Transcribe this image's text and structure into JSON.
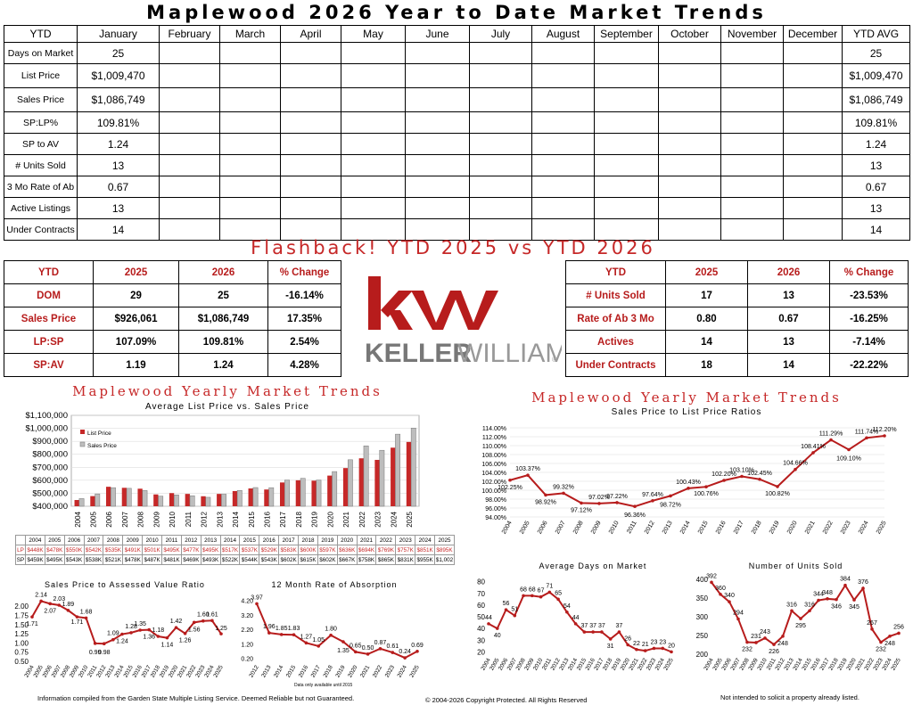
{
  "title": "Maplewood 2026 Year to Date Market Trends",
  "ytd_table": {
    "headers": [
      "YTD",
      "January",
      "February",
      "March",
      "April",
      "May",
      "June",
      "July",
      "August",
      "September",
      "October",
      "November",
      "December",
      "YTD AVG"
    ],
    "rows": [
      {
        "label": "Days on Market",
        "jan": "25",
        "avg": "25"
      },
      {
        "label": "List Price",
        "jan": "$1,009,470",
        "avg": "$1,009,470"
      },
      {
        "label": "Sales Price",
        "jan": "$1,086,749",
        "avg": "$1,086,749"
      },
      {
        "label": "SP:LP%",
        "jan": "109.81%",
        "avg": "109.81%"
      },
      {
        "label": "SP to AV",
        "jan": "1.24",
        "avg": "1.24"
      },
      {
        "label": "# Units Sold",
        "jan": "13",
        "avg": "13"
      },
      {
        "label": "3 Mo Rate of Ab",
        "jan": "0.67",
        "avg": "0.67"
      },
      {
        "label": "Active Listings",
        "jan": "13",
        "avg": "13"
      },
      {
        "label": "Under Contracts",
        "jan": "14",
        "avg": "14"
      }
    ]
  },
  "flashback_title": "Flashback!  YTD 2025 vs YTD 2026",
  "compare_left": {
    "headers": [
      "YTD",
      "2025",
      "2026",
      "% Change"
    ],
    "rows": [
      [
        "DOM",
        "29",
        "25",
        "-16.14%"
      ],
      [
        "Sales Price",
        "$926,061",
        "$1,086,749",
        "17.35%"
      ],
      [
        "LP:SP",
        "107.09%",
        "109.81%",
        "2.54%"
      ],
      [
        "SP:AV",
        "1.19",
        "1.24",
        "4.28%"
      ]
    ]
  },
  "compare_right": {
    "headers": [
      "YTD",
      "2025",
      "2026",
      "% Change"
    ],
    "rows": [
      [
        "# Units Sold",
        "17",
        "13",
        "-23.53%"
      ],
      [
        "Rate of Ab 3 Mo",
        "0.80",
        "0.67",
        "-16.25%"
      ],
      [
        "Actives",
        "14",
        "13",
        "-7.14%"
      ],
      [
        "Under Contracts",
        "18",
        "14",
        "-22.22%"
      ]
    ]
  },
  "logo": {
    "mark": "kw",
    "name_bold": "KELLER",
    "name_light": "WILLIAMS",
    "registered": "®"
  },
  "colors": {
    "accent": "#c62828",
    "dark_red": "#b71c1c",
    "gray_bar": "#bdbdbd"
  },
  "footer": {
    "left": "Information compiled from the Garden State Multiple Listing Service.  Deemed Reliable but not Guaranteed.",
    "center": "© 2004-2026 Copyright Protected.  All Rights Reserved",
    "right": "Not intended to solicit a property already listed.",
    "note": "Data only available until 2015"
  },
  "chart_data": [
    {
      "type": "bar",
      "title": "Maplewood Yearly Market Trends",
      "subtitle": "Average List Price vs. Sales Price",
      "categories": [
        "2004",
        "2005",
        "2006",
        "2007",
        "2008",
        "2009",
        "2010",
        "2011",
        "2012",
        "2013",
        "2014",
        "2015",
        "2016",
        "2017",
        "2018",
        "2019",
        "2020",
        "2021",
        "2022",
        "2023",
        "2024",
        "2025"
      ],
      "series": [
        {
          "name": "List Price",
          "values": [
            448,
            478,
            550,
            542,
            535,
            491,
            501,
            495,
            477,
            495,
            517,
            537,
            529,
            583,
            600,
            597,
            636,
            694,
            769,
            757,
            851,
            895
          ]
        },
        {
          "name": "Sales Price",
          "values": [
            459,
            495,
            543,
            538,
            521,
            478,
            487,
            481,
            469,
            493,
            522,
            544,
            543,
            602,
            615,
            602,
            667,
            758,
            865,
            831,
            955,
            1002
          ]
        }
      ],
      "yticks": [
        "$400,000",
        "$500,000",
        "$600,000",
        "$700,000",
        "$800,000",
        "$900,000",
        "$1,000,000",
        "$1,100,000"
      ],
      "ylim": [
        400,
        1100
      ],
      "table_rows": [
        {
          "label": "LP",
          "cells": [
            "$448K",
            "$478K",
            "$550K",
            "$542K",
            "$535K",
            "$491K",
            "$501K",
            "$495K",
            "$477K",
            "$495K",
            "$517K",
            "$537K",
            "$529K",
            "$583K",
            "$600K",
            "$597K",
            "$636K",
            "$694K",
            "$769K",
            "$757K",
            "$851K",
            "$895K"
          ]
        },
        {
          "label": "SP",
          "cells": [
            "$459K",
            "$495K",
            "$543K",
            "$538K",
            "$521K",
            "$478K",
            "$487K",
            "$481K",
            "$469K",
            "$493K",
            "$522K",
            "$544K",
            "$543K",
            "$602K",
            "$615K",
            "$602K",
            "$667K",
            "$758K",
            "$865K",
            "$831K",
            "$955K",
            "$1,002"
          ]
        }
      ]
    },
    {
      "type": "line",
      "title": "Maplewood Yearly Market Trends",
      "subtitle": "Sales Price to List Price Ratios",
      "x": [
        "2004",
        "2005",
        "2006",
        "2007",
        "2008",
        "2009",
        "2010",
        "2011",
        "2012",
        "2013",
        "2014",
        "2015",
        "2016",
        "2017",
        "2018",
        "2019",
        "2020",
        "2021",
        "2022",
        "2023",
        "2024",
        "2025"
      ],
      "y": [
        102.25,
        103.37,
        98.92,
        99.32,
        97.12,
        97.02,
        97.22,
        96.36,
        97.64,
        98.72,
        100.43,
        100.76,
        102.2,
        103.1,
        102.45,
        100.82,
        104.66,
        108.41,
        111.29,
        109.1,
        111.74,
        112.2
      ],
      "labels": [
        "102.25%",
        "103.37%",
        "98.92%",
        "99.32%",
        "97.12%",
        "97.02%",
        "97.22%",
        "96.36%",
        "97.64%",
        "98.72%",
        "100.43%",
        "100.76%",
        "102.20%",
        "103.10%",
        "102.45%",
        "100.82%",
        "104.66%",
        "108.41%",
        "111.29%",
        "109.10%",
        "111.74%",
        "112.20%"
      ],
      "yticks": [
        "94.00%",
        "96.00%",
        "98.00%",
        "100.00%",
        "102.00%",
        "104.00%",
        "106.00%",
        "108.00%",
        "110.00%",
        "112.00%",
        "114.00%"
      ],
      "ylim": [
        94,
        114
      ]
    },
    {
      "type": "line",
      "title": "Sales Price to Assessed Value Ratio",
      "x": [
        "2004",
        "2005",
        "2006",
        "2007",
        "2008",
        "2009",
        "2010",
        "2011",
        "2012",
        "2013",
        "2014",
        "2015",
        "2016",
        "2017",
        "2018",
        "2019",
        "2020",
        "2021",
        "2022",
        "2023",
        "2024",
        "2025"
      ],
      "y": [
        1.71,
        2.14,
        2.07,
        2.03,
        1.89,
        1.71,
        1.68,
        0.99,
        0.98,
        1.09,
        1.24,
        1.28,
        1.35,
        1.36,
        1.18,
        1.14,
        1.42,
        1.26,
        1.56,
        1.6,
        1.61,
        1.25
      ],
      "labels": [
        "1.71",
        "2.14",
        "2.07",
        "2.03",
        "1.89",
        "1.71",
        "1.68",
        "0.99",
        "0.98",
        "1.09",
        "1.24",
        "1.28",
        "1.35",
        "1.36",
        "1.18",
        "1.14",
        "1.42",
        "1.26",
        "1.56",
        "1.60",
        "1.61",
        "1.25"
      ],
      "yticks": [
        "0.50",
        "0.75",
        "1.00",
        "1.25",
        "1.50",
        "1.75",
        "2.00"
      ],
      "ylim": [
        0.5,
        2.2
      ]
    },
    {
      "type": "line",
      "title": "12 Month Rate of Absorption",
      "x": [
        "2012",
        "2013",
        "2014",
        "2015",
        "2016",
        "2017",
        "2018",
        "2019",
        "2020",
        "2021",
        "2022",
        "2023",
        "2024",
        "2025"
      ],
      "y": [
        3.97,
        1.96,
        1.85,
        1.83,
        1.27,
        1.05,
        1.8,
        1.35,
        0.65,
        0.5,
        0.87,
        0.61,
        0.24,
        0.69
      ],
      "labels": [
        "3.97",
        "1.96",
        "1.85",
        "1.83",
        "1.27",
        "1.05",
        "1.80",
        "1.35",
        "0.65",
        "0.50",
        "0.87",
        "0.61",
        "0.24",
        "0.69"
      ],
      "yticks": [
        "0.20",
        "1.20",
        "2.20",
        "3.20",
        "4.20"
      ],
      "ylim": [
        0,
        4.3
      ]
    },
    {
      "type": "line",
      "title": "Average Days on Market",
      "x": [
        "2004",
        "2005",
        "2006",
        "2007",
        "2008",
        "2009",
        "2010",
        "2011",
        "2012",
        "2013",
        "2014",
        "2015",
        "2016",
        "2017",
        "2018",
        "2019",
        "2020",
        "2021",
        "2022",
        "2023",
        "2024",
        "2025"
      ],
      "y": [
        44,
        40,
        56,
        51,
        68,
        68,
        67,
        71,
        65,
        54,
        44,
        37,
        37,
        37,
        31,
        37,
        26,
        22,
        21,
        23,
        23,
        20
      ],
      "labels": [
        "44",
        "40",
        "56",
        "51",
        "68",
        "68",
        "67",
        "71",
        "65",
        "54",
        "44",
        "37",
        "37",
        "37",
        "31",
        "37",
        "26",
        "22",
        "21",
        "23",
        "23",
        "20"
      ],
      "yticks": [
        "20",
        "30",
        "40",
        "50",
        "60",
        "70",
        "80"
      ],
      "ylim": [
        18,
        82
      ]
    },
    {
      "type": "line",
      "title": "Number of Units Sold",
      "x": [
        "2004",
        "2005",
        "2006",
        "2007",
        "2008",
        "2009",
        "2010",
        "2011",
        "2012",
        "2013",
        "2014",
        "2015",
        "2016",
        "2017",
        "2018",
        "2019",
        "2020",
        "2021",
        "2022",
        "2023",
        "2024",
        "2025"
      ],
      "y": [
        392,
        360,
        340,
        294,
        232,
        231,
        243,
        226,
        248,
        316,
        295,
        316,
        344,
        348,
        346,
        384,
        345,
        376,
        267,
        232,
        248,
        256
      ],
      "labels": [
        "392",
        "360",
        "340",
        "294",
        "232",
        "231",
        "243",
        "226",
        "248",
        "316",
        "295",
        "316",
        "344",
        "348",
        "346",
        "384",
        "345",
        "376",
        "267",
        "232",
        "248",
        "256"
      ],
      "yticks": [
        "200",
        "250",
        "300",
        "350",
        "400"
      ],
      "ylim": [
        200,
        400
      ]
    }
  ]
}
